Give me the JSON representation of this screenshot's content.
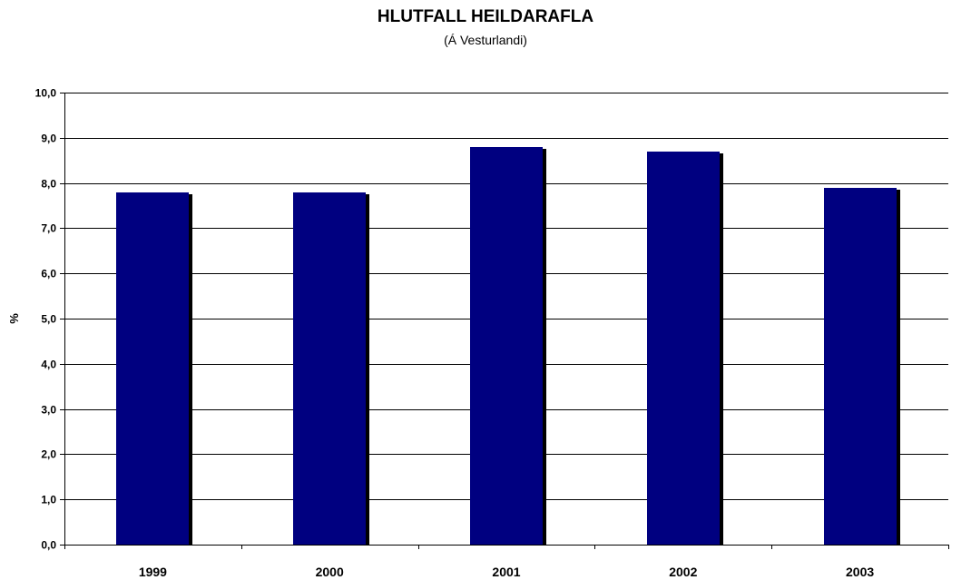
{
  "chart_data": {
    "type": "bar",
    "title": "HLUTFALL HEILDARAFLA",
    "subtitle": "(Á Vesturlandi)",
    "xlabel": "",
    "ylabel": "%",
    "categories": [
      "1999",
      "2000",
      "2001",
      "2002",
      "2003"
    ],
    "values": [
      7.8,
      7.8,
      8.8,
      8.7,
      7.9
    ],
    "ylim": [
      0,
      10
    ],
    "yticks": [
      "0,0",
      "1,0",
      "2,0",
      "3,0",
      "4,0",
      "5,0",
      "6,0",
      "7,0",
      "8,0",
      "9,0",
      "10,0"
    ],
    "grid": true,
    "legend": "none",
    "bar_color": "#000080",
    "shadow_color": "#000000"
  }
}
